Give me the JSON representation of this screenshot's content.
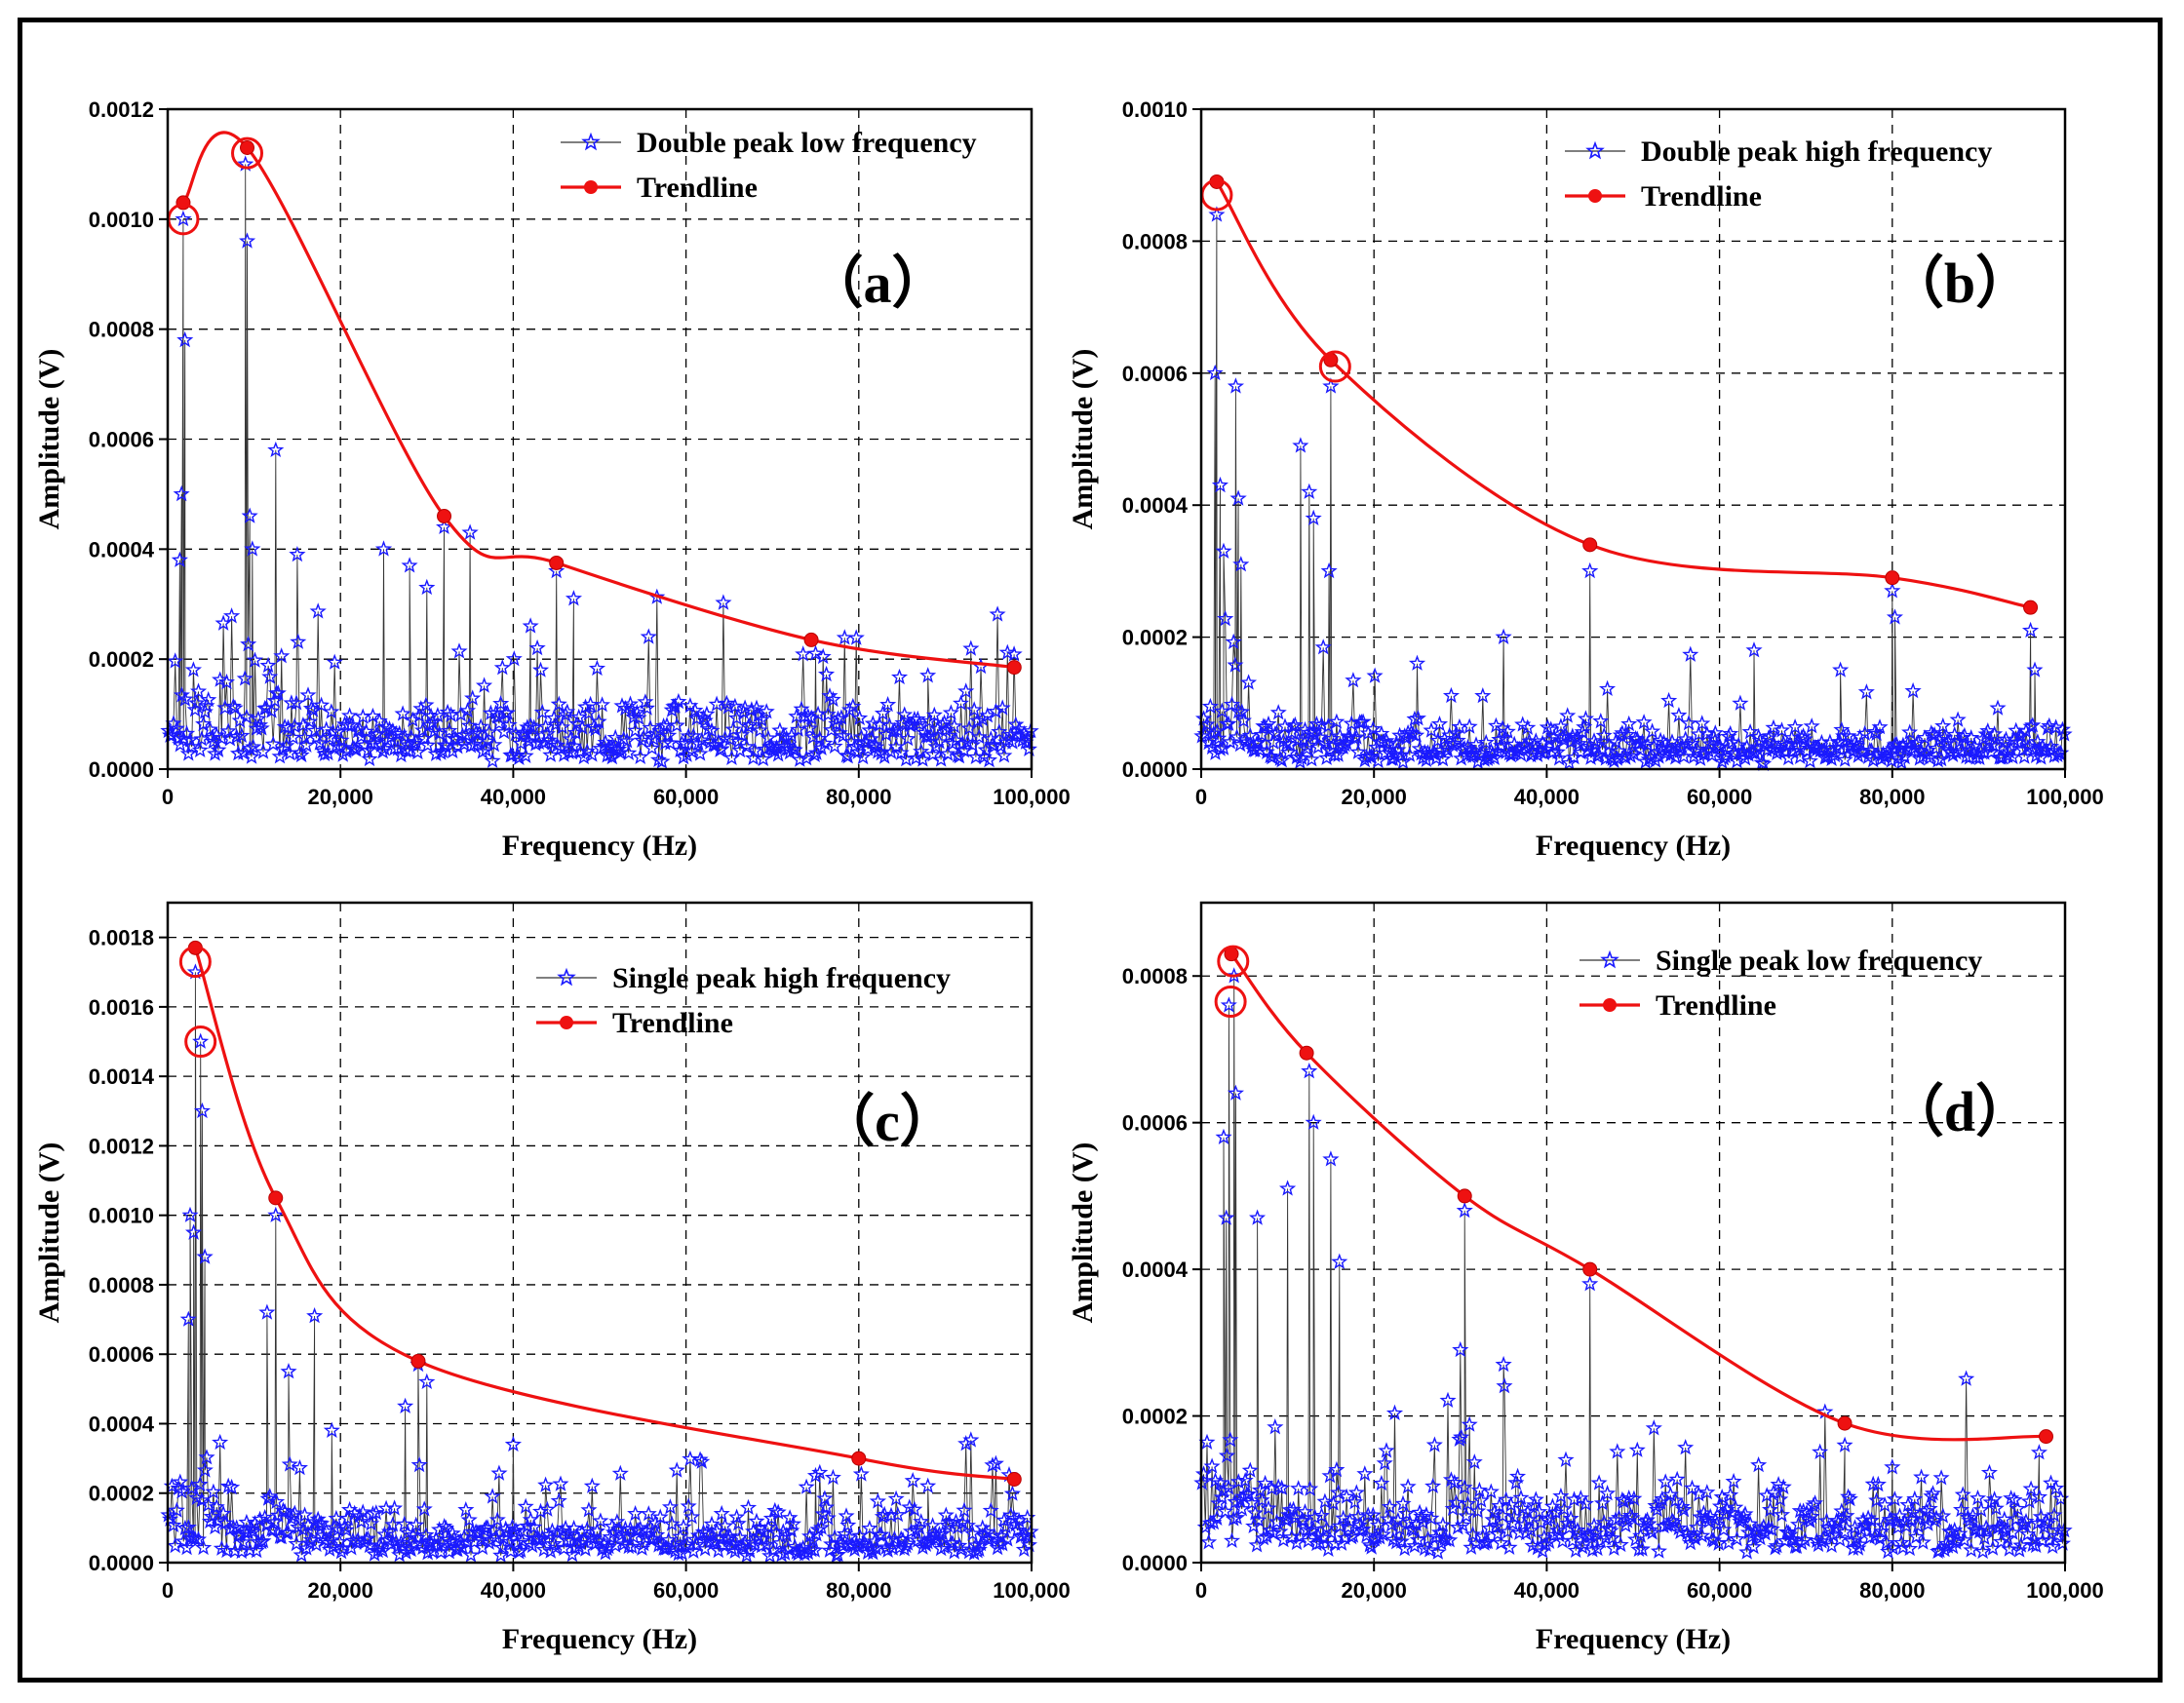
{
  "figure": {
    "description_id": "fft-amplitude-spectra"
  },
  "chart_data": [
    {
      "id": "a",
      "type": "scatter",
      "panel_label": "（a）",
      "xlabel": "Frequency (Hz)",
      "ylabel": "Amplitude (V)",
      "xlim": [
        0,
        100000
      ],
      "ylim": [
        0,
        0.0012
      ],
      "xticks": [
        0,
        20000,
        40000,
        60000,
        80000,
        100000
      ],
      "xtick_labels": [
        "0",
        "20,000",
        "40,000",
        "60,000",
        "80,000",
        "100,000"
      ],
      "yticks": [
        0,
        0.0002,
        0.0004,
        0.0006,
        0.0008,
        0.001,
        0.0012
      ],
      "ytick_labels": [
        "0.0000",
        "0.0002",
        "0.0004",
        "0.0006",
        "0.0008",
        "0.0010",
        "0.0012"
      ],
      "grid": true,
      "legend_position": "top-right",
      "series": [
        {
          "name": "Double peak low frequency",
          "color": "#1a1aff",
          "marker": "star",
          "peaks": [
            [
              1800,
              0.001
            ],
            [
              2000,
              0.00078
            ],
            [
              1600,
              0.0005
            ],
            [
              1400,
              0.00038
            ],
            [
              9000,
              0.0011
            ],
            [
              9200,
              0.00096
            ],
            [
              9500,
              0.00046
            ],
            [
              9800,
              0.0004
            ],
            [
              12500,
              0.00058
            ],
            [
              15000,
              0.00039
            ],
            [
              25000,
              0.0004
            ],
            [
              28000,
              0.00037
            ],
            [
              32000,
              0.00044
            ],
            [
              35000,
              0.00043
            ],
            [
              45000,
              0.00036
            ],
            [
              47000,
              0.00031
            ],
            [
              30000,
              0.00033
            ],
            [
              42000,
              0.00026
            ],
            [
              75000,
              0.00021
            ],
            [
              88000,
              0.00017
            ]
          ],
          "noise_level": 7e-05,
          "noise_spike": 0.0002
        },
        {
          "name": "Trendline",
          "color": "#ee1111",
          "marker": "circle",
          "x": [
            1800,
            9200,
            32000,
            45000,
            74500,
            98000
          ],
          "y": [
            0.00103,
            0.00113,
            0.00046,
            0.000375,
            0.000235,
            0.000185
          ]
        }
      ],
      "circled_points": [
        [
          1800,
          0.001
        ],
        [
          9200,
          0.00112
        ]
      ]
    },
    {
      "id": "b",
      "type": "scatter",
      "panel_label": "（b）",
      "xlabel": "Frequency (Hz)",
      "ylabel": "Amplitude (V)",
      "xlim": [
        0,
        100000
      ],
      "ylim": [
        0,
        0.001
      ],
      "xticks": [
        0,
        20000,
        40000,
        60000,
        80000,
        100000
      ],
      "xtick_labels": [
        "0",
        "20,000",
        "40,000",
        "60,000",
        "80,000",
        "100,000"
      ],
      "yticks": [
        0,
        0.0002,
        0.0004,
        0.0006,
        0.0008,
        0.001
      ],
      "ytick_labels": [
        "0.0000",
        "0.0002",
        "0.0004",
        "0.0006",
        "0.0008",
        "0.0010"
      ],
      "grid": true,
      "legend_position": "top-right",
      "series": [
        {
          "name": "Double peak high frequency",
          "color": "#1a1aff",
          "marker": "star",
          "peaks": [
            [
              1800,
              0.00084
            ],
            [
              1600,
              0.0006
            ],
            [
              2200,
              0.00043
            ],
            [
              2600,
              0.00033
            ],
            [
              4000,
              0.00058
            ],
            [
              4300,
              0.00041
            ],
            [
              4600,
              0.00031
            ],
            [
              11500,
              0.00049
            ],
            [
              12500,
              0.00042
            ],
            [
              13000,
              0.00038
            ],
            [
              15000,
              0.00058
            ],
            [
              14800,
              0.0003
            ],
            [
              35000,
              0.0002
            ],
            [
              45000,
              0.0003
            ],
            [
              64000,
              0.00018
            ],
            [
              74000,
              0.00015
            ],
            [
              80000,
              0.00027
            ],
            [
              80300,
              0.00023
            ],
            [
              96000,
              0.00021
            ],
            [
              96500,
              0.00015
            ],
            [
              25000,
              0.00016
            ]
          ],
          "noise_level": 4e-05,
          "noise_spike": 0.00013
        },
        {
          "name": "Trendline",
          "color": "#ee1111",
          "marker": "circle",
          "x": [
            1800,
            15000,
            45000,
            80000,
            96000
          ],
          "y": [
            0.00089,
            0.00062,
            0.00034,
            0.00029,
            0.000245
          ]
        }
      ],
      "circled_points": [
        [
          1800,
          0.00087
        ],
        [
          15500,
          0.00061
        ]
      ]
    },
    {
      "id": "c",
      "type": "scatter",
      "panel_label": "（c）",
      "xlabel": "Frequency (Hz)",
      "ylabel": "Amplitude (V)",
      "xlim": [
        0,
        100000
      ],
      "ylim": [
        0,
        0.0019
      ],
      "xticks": [
        0,
        20000,
        40000,
        60000,
        80000,
        100000
      ],
      "xtick_labels": [
        "0",
        "20,000",
        "40,000",
        "60,000",
        "80,000",
        "100,000"
      ],
      "yticks": [
        0,
        0.0002,
        0.0004,
        0.0006,
        0.0008,
        0.001,
        0.0012,
        0.0014,
        0.0016,
        0.0018
      ],
      "ytick_labels": [
        "0.0000",
        "0.0002",
        "0.0004",
        "0.0006",
        "0.0008",
        "0.0010",
        "0.0012",
        "0.0014",
        "0.0016",
        "0.0018"
      ],
      "grid": true,
      "legend_position": "top-right",
      "series": [
        {
          "name": "Single peak high frequency",
          "color": "#1a1aff",
          "marker": "star",
          "peaks": [
            [
              3200,
              0.0017
            ],
            [
              3800,
              0.0015
            ],
            [
              4000,
              0.0013
            ],
            [
              2600,
              0.001
            ],
            [
              3000,
              0.00095
            ],
            [
              4300,
              0.00088
            ],
            [
              2400,
              0.0007
            ],
            [
              12500,
              0.001
            ],
            [
              11500,
              0.00072
            ],
            [
              17000,
              0.00071
            ],
            [
              29000,
              0.00057
            ],
            [
              30000,
              0.00052
            ],
            [
              27500,
              0.00045
            ],
            [
              40000,
              0.00034
            ],
            [
              75000,
              0.00025
            ],
            [
              88000,
              0.00022
            ],
            [
              14000,
              0.00055
            ],
            [
              19000,
              0.00038
            ]
          ],
          "noise_level": 9e-05,
          "noise_spike": 0.00022
        },
        {
          "name": "Trendline",
          "color": "#ee1111",
          "marker": "circle",
          "x": [
            3200,
            12500,
            29000,
            80000,
            98000
          ],
          "y": [
            0.00177,
            0.00105,
            0.00058,
            0.0003,
            0.00024
          ]
        }
      ],
      "circled_points": [
        [
          3200,
          0.00173
        ],
        [
          3800,
          0.0015
        ]
      ]
    },
    {
      "id": "d",
      "type": "scatter",
      "panel_label": "（d）",
      "xlabel": "Frequency (Hz)",
      "ylabel": "Amplitude (V)",
      "xlim": [
        0,
        100000
      ],
      "ylim": [
        0,
        0.0009
      ],
      "xticks": [
        0,
        20000,
        40000,
        60000,
        80000,
        100000
      ],
      "xtick_labels": [
        "0",
        "20,000",
        "40,000",
        "60,000",
        "80,000",
        "100,000"
      ],
      "yticks": [
        0,
        0.0002,
        0.0004,
        0.0006,
        0.0008
      ],
      "ytick_labels": [
        "0.0000",
        "0.0002",
        "0.0004",
        "0.0006",
        "0.0008"
      ],
      "grid": true,
      "legend_position": "top-right",
      "series": [
        {
          "name": "Single peak low frequency",
          "color": "#1a1aff",
          "marker": "star",
          "peaks": [
            [
              3200,
              0.00076
            ],
            [
              3800,
              0.0008
            ],
            [
              4000,
              0.00064
            ],
            [
              2600,
              0.00058
            ],
            [
              2900,
              0.00047
            ],
            [
              12500,
              0.00067
            ],
            [
              13000,
              0.0006
            ],
            [
              15000,
              0.00055
            ],
            [
              10000,
              0.00051
            ],
            [
              16000,
              0.00041
            ],
            [
              30500,
              0.00048
            ],
            [
              30000,
              0.00029
            ],
            [
              45000,
              0.00038
            ],
            [
              35000,
              0.00027
            ],
            [
              74500,
              0.00016
            ],
            [
              97000,
              0.00015
            ],
            [
              6500,
              0.00047
            ],
            [
              80000,
              0.00013
            ]
          ],
          "noise_level": 6e-05,
          "noise_spike": 0.00015
        },
        {
          "name": "Trendline",
          "color": "#ee1111",
          "marker": "circle",
          "x": [
            3500,
            12200,
            30500,
            45000,
            74500,
            97800
          ],
          "y": [
            0.00083,
            0.000695,
            0.0005,
            0.0004,
            0.00019,
            0.000172
          ]
        }
      ],
      "circled_points": [
        [
          3700,
          0.00082
        ],
        [
          3400,
          0.000765
        ]
      ]
    }
  ]
}
